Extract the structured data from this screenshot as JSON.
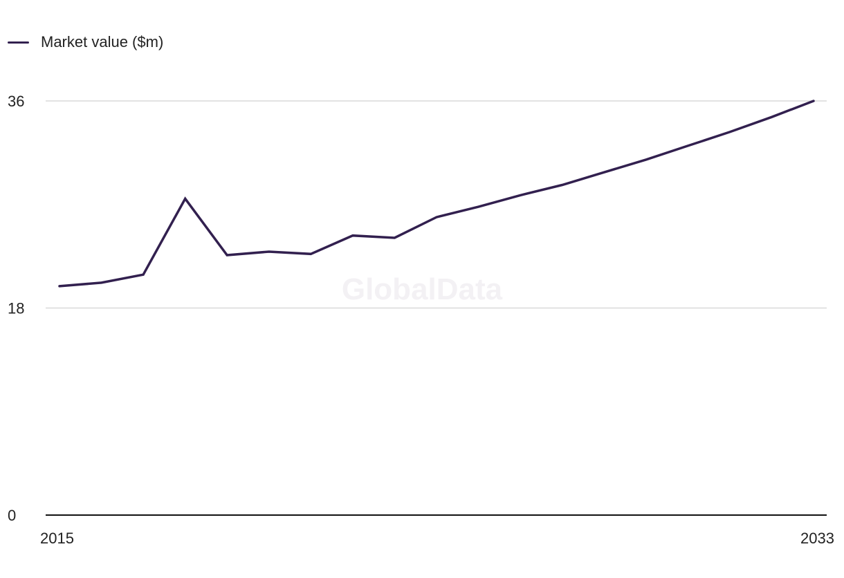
{
  "legend": {
    "label": "Market value ($m)"
  },
  "watermark": "GlobalData",
  "colors": {
    "series": "#32204f",
    "grid": "#d9d9d9",
    "axis": "#111111"
  },
  "chart_data": {
    "type": "line",
    "x": [
      2015,
      2016,
      2017,
      2018,
      2019,
      2020,
      2021,
      2022,
      2023,
      2024,
      2025,
      2026,
      2027,
      2028,
      2029,
      2030,
      2031,
      2032,
      2033
    ],
    "series": [
      {
        "name": "Market value ($m)",
        "values": [
          19.9,
          20.2,
          20.9,
          27.5,
          22.6,
          22.9,
          22.7,
          24.3,
          24.1,
          25.9,
          26.8,
          27.8,
          28.7,
          29.8,
          30.9,
          32.1,
          33.3,
          34.6,
          36.0
        ]
      }
    ],
    "xticks": [
      "2015",
      "2033"
    ],
    "yticks": [
      0,
      18,
      36
    ],
    "ylim": [
      0,
      36
    ],
    "xlim": [
      2015,
      2033
    ],
    "grid": true,
    "legend_position": "top-left"
  }
}
